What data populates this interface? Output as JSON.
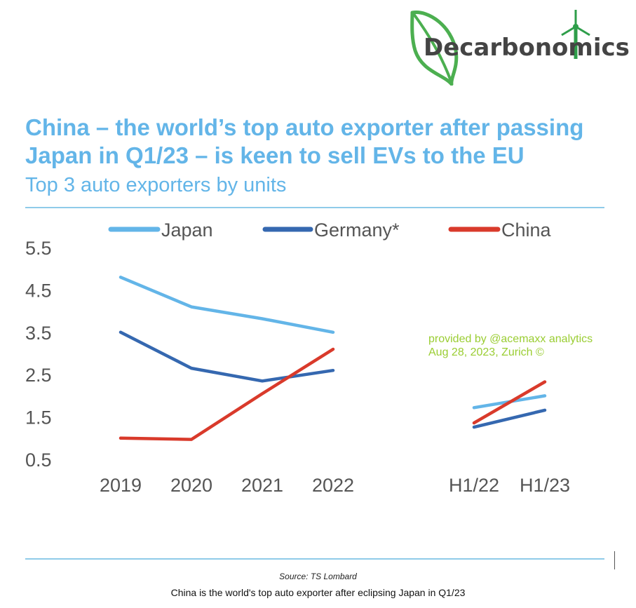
{
  "logo": {
    "text": "Decarbonomics"
  },
  "header": {
    "title": "China – the world’s top auto exporter after passing Japan in Q1/23 – is keen to sell EVs to the EU",
    "subtitle": "Top 3 auto exporters by units"
  },
  "watermark": {
    "line1": "provided by @acemaxx analytics",
    "line2": "Aug 28, 2023, Zurich ©"
  },
  "footer": {
    "source": "Source: TS Lombard",
    "caption": "China is the world's top auto exporter after eclipsing Japan in Q1/23"
  },
  "colors": {
    "japan": "#63b5e8",
    "germany": "#3568b0",
    "china": "#d93a2b",
    "accent": "#63b5e8"
  },
  "chart_data": {
    "type": "line",
    "title": "Top 3 auto exporters by units",
    "ylim": [
      0.5,
      5.5
    ],
    "yticks": [
      "5.5",
      "4.5",
      "3.5",
      "2.5",
      "1.5",
      "0.5"
    ],
    "ytick_values": [
      5.5,
      4.5,
      3.5,
      2.5,
      1.5,
      0.5
    ],
    "legend_position": "top",
    "grid": false,
    "panels": [
      {
        "categories": [
          "2019",
          "2020",
          "2021",
          "2022"
        ],
        "series": [
          {
            "name": "Japan",
            "color": "#63b5e8",
            "values": [
              4.8,
              4.1,
              3.82,
              3.5
            ]
          },
          {
            "name": "Germany*",
            "color": "#3568b0",
            "values": [
              3.5,
              2.65,
              2.35,
              2.6
            ]
          },
          {
            "name": "China",
            "color": "#d93a2b",
            "values": [
              1.0,
              0.97,
              2.05,
              3.1
            ]
          }
        ]
      },
      {
        "categories": [
          "H1/22",
          "H1/23"
        ],
        "series": [
          {
            "name": "Japan",
            "color": "#63b5e8",
            "values": [
              1.72,
              2.0
            ]
          },
          {
            "name": "Germany*",
            "color": "#3568b0",
            "values": [
              1.26,
              1.66
            ]
          },
          {
            "name": "China",
            "color": "#d93a2b",
            "values": [
              1.36,
              2.33
            ]
          }
        ]
      }
    ]
  }
}
